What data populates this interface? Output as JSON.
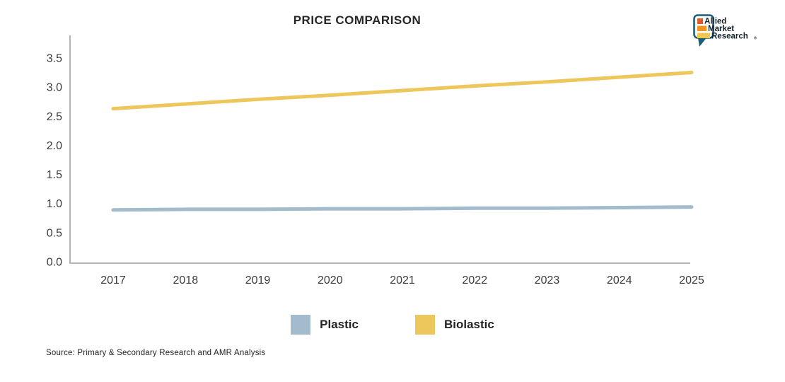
{
  "header": {
    "title": "PRICE COMPARISON"
  },
  "logo": {
    "lines": [
      "Allied",
      "Market",
      "Research"
    ],
    "registered": "®",
    "bubble_color": "#1e5d7a",
    "bar_colors": [
      "#e2572b",
      "#f0941f",
      "#eec94f"
    ]
  },
  "chart_data": {
    "type": "line",
    "title": "PRICE COMPARISON",
    "x": [
      2017,
      2018,
      2019,
      2020,
      2021,
      2022,
      2023,
      2024,
      2025
    ],
    "series": [
      {
        "name": "Plastic",
        "color": "#a2bcce",
        "values": [
          0.89,
          0.9,
          0.9,
          0.91,
          0.91,
          0.92,
          0.92,
          0.93,
          0.94
        ]
      },
      {
        "name": "Biolastic",
        "color": "#edc75c",
        "values": [
          2.63,
          2.71,
          2.79,
          2.86,
          2.94,
          3.02,
          3.09,
          3.17,
          3.25
        ]
      }
    ],
    "xlabel": "",
    "ylabel": "",
    "ylim": [
      0,
      3.5
    ],
    "ytick_step": 0.5,
    "yticks": [
      "0.0",
      "0.5",
      "1.0",
      "1.5",
      "2.0",
      "2.5",
      "3.0",
      "3.5"
    ],
    "grid": false,
    "legend_position": "bottom",
    "axis_color": "#b4b4b4",
    "tick_label_color": "#3b3b3b"
  },
  "legend": {
    "items": [
      {
        "label": "Plastic",
        "color": "#a2bcce"
      },
      {
        "label": "Biolastic",
        "color": "#edc75c"
      }
    ]
  },
  "footer": {
    "source": "Source: Primary & Secondary Research and AMR Analysis"
  }
}
